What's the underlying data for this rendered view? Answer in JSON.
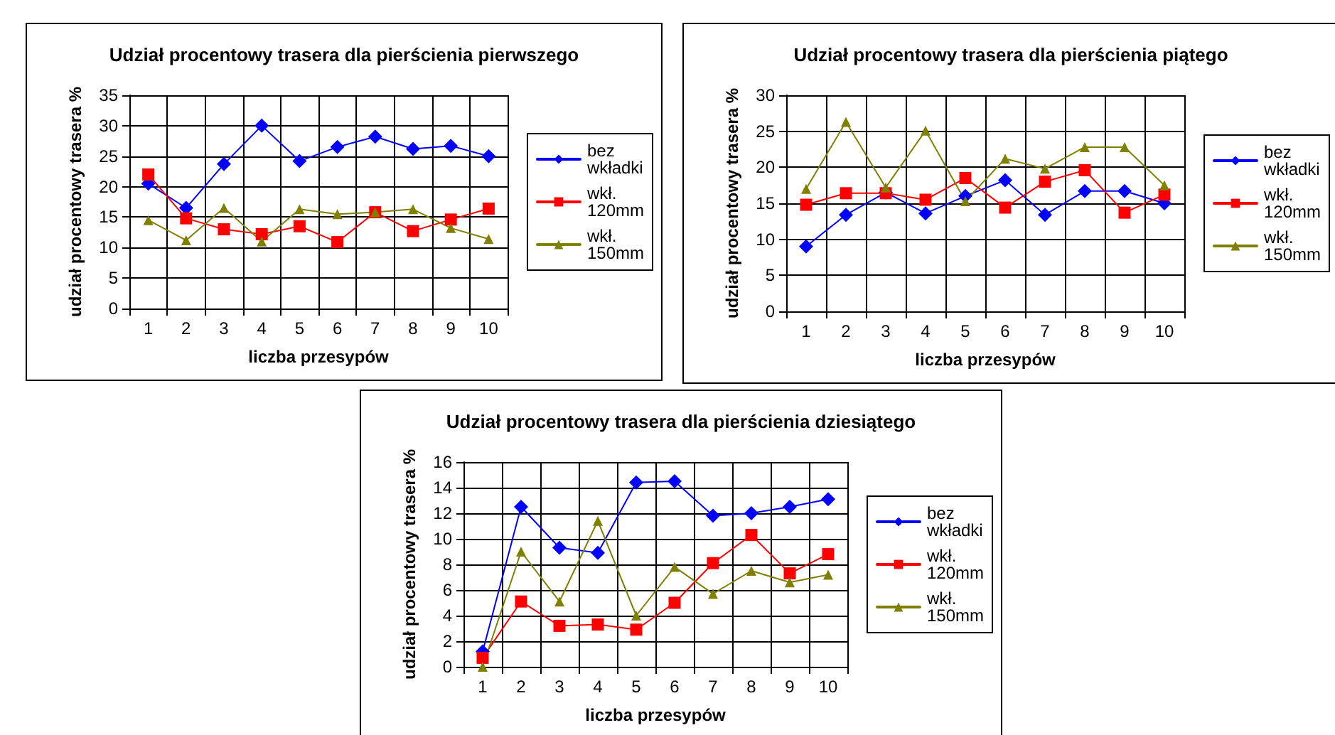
{
  "chart_data": [
    {
      "type": "line",
      "title": "Udział procentowy trasera dla pierścienia pierwszego",
      "xlabel": "liczba przesypów",
      "ylabel": "udział procentowy trasera %",
      "categories": [
        "1",
        "2",
        "3",
        "4",
        "5",
        "6",
        "7",
        "8",
        "9",
        "10"
      ],
      "ylim": [
        0,
        35
      ],
      "yticks": [
        0,
        5,
        10,
        15,
        20,
        25,
        30,
        35
      ],
      "grid": true,
      "legend": "right",
      "series": [
        {
          "name": "bez wkładki",
          "color": "#0000ff",
          "marker": "diamond",
          "values": [
            20.5,
            16.5,
            23.7,
            30,
            24.2,
            26.5,
            28.2,
            26.2,
            26.7,
            25
          ]
        },
        {
          "name": "wkł. 120mm",
          "color": "#ff0000",
          "marker": "square",
          "values": [
            22,
            14.8,
            13,
            12.2,
            13.5,
            10.9,
            15.8,
            12.7,
            14.6,
            16.4
          ]
        },
        {
          "name": "wkł. 150mm",
          "color": "#808000",
          "marker": "triangle",
          "values": [
            14.5,
            11.2,
            16.5,
            11,
            16.3,
            15.5,
            15.8,
            16.3,
            13.2,
            11.4
          ]
        }
      ]
    },
    {
      "type": "line",
      "title": "Udział procentowy trasera dla pierścienia piątego",
      "xlabel": "liczba przesypów",
      "ylabel": "udział procentowy trasera %",
      "categories": [
        "1",
        "2",
        "3",
        "4",
        "5",
        "6",
        "7",
        "8",
        "9",
        "10"
      ],
      "ylim": [
        0,
        30
      ],
      "yticks": [
        0,
        5,
        10,
        15,
        20,
        25,
        30
      ],
      "grid": true,
      "legend": "right",
      "series": [
        {
          "name": "bez wkładki",
          "color": "#0000ff",
          "marker": "diamond",
          "values": [
            9,
            13.4,
            16.5,
            13.6,
            16,
            18.2,
            13.4,
            16.7,
            16.7,
            15
          ]
        },
        {
          "name": "wkł. 120mm",
          "color": "#ff0000",
          "marker": "square",
          "values": [
            14.8,
            16.4,
            16.4,
            15.5,
            18.5,
            14.4,
            18,
            19.6,
            13.7,
            16.2
          ]
        },
        {
          "name": "wkł. 150mm",
          "color": "#808000",
          "marker": "triangle",
          "values": [
            17,
            26.3,
            17.2,
            25.1,
            15.3,
            21.2,
            19.8,
            22.8,
            22.8,
            17.5
          ]
        }
      ]
    },
    {
      "type": "line",
      "title": "Udział procentowy trasera dla pierścienia dziesiątego",
      "xlabel": "liczba przesypów",
      "ylabel": "udział procentowy trasera %",
      "categories": [
        "1",
        "2",
        "3",
        "4",
        "5",
        "6",
        "7",
        "8",
        "9",
        "10"
      ],
      "ylim": [
        0,
        16
      ],
      "yticks": [
        0,
        2,
        4,
        6,
        8,
        10,
        12,
        14,
        16
      ],
      "grid": true,
      "legend": "right",
      "series": [
        {
          "name": "bez wkładki",
          "color": "#0000ff",
          "marker": "diamond",
          "values": [
            1.2,
            12.5,
            9.3,
            8.9,
            14.4,
            14.5,
            11.8,
            12,
            12.5,
            13.1
          ]
        },
        {
          "name": "wkł. 120mm",
          "color": "#ff0000",
          "marker": "square",
          "values": [
            0.7,
            5.1,
            3.2,
            3.3,
            2.9,
            5,
            8.1,
            10.3,
            7.3,
            8.8
          ]
        },
        {
          "name": "wkł. 150mm",
          "color": "#808000",
          "marker": "triangle",
          "values": [
            0,
            9,
            5.1,
            11.4,
            4,
            7.8,
            5.7,
            7.5,
            6.6,
            7.2
          ]
        }
      ]
    }
  ]
}
